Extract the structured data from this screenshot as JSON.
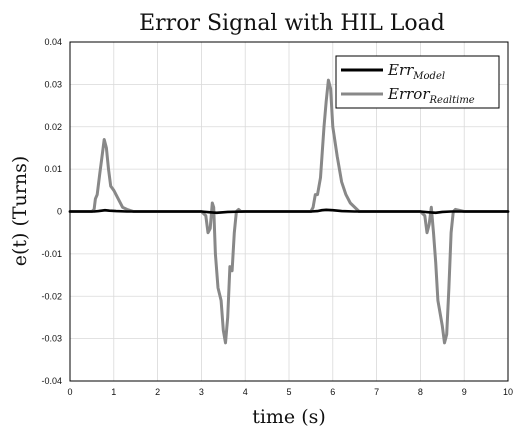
{
  "chart_data": {
    "type": "line",
    "title": "Error Signal with HIL Load",
    "xlabel": "time (s)",
    "ylabel": "e(t) (Turns)",
    "xlim": [
      0,
      10
    ],
    "ylim": [
      -0.04,
      0.04
    ],
    "xticks": [
      0,
      1,
      2,
      3,
      4,
      5,
      6,
      7,
      8,
      9,
      10
    ],
    "yticks": [
      0.04,
      0.03,
      0.02,
      0.01,
      0,
      -0.01,
      -0.02,
      -0.03,
      -0.04
    ],
    "ytick_labels": [
      "0.04",
      "0.03",
      "0.02",
      "0.01",
      "0",
      "-0.01",
      "-0.02",
      "-0.03",
      "-0.04"
    ],
    "xtick_labels": [
      "0",
      "1",
      "2",
      "3",
      "4",
      "5",
      "6",
      "7",
      "8",
      "9",
      "10"
    ],
    "grid": true,
    "legend_position": "top-right",
    "series": [
      {
        "name_main": "Err",
        "name_sub": "Model",
        "color": "#000000",
        "x": [
          0,
          0.55,
          0.65,
          0.72,
          0.8,
          0.9,
          1.05,
          1.3,
          2.0,
          3.0,
          3.2,
          3.35,
          3.6,
          4.0,
          5.5,
          5.65,
          5.75,
          5.85,
          6.0,
          6.2,
          6.5,
          7.5,
          8.0,
          8.2,
          8.35,
          8.5,
          8.7,
          9.0,
          10.0
        ],
        "y": [
          0,
          0,
          0.0001,
          0.0002,
          0.0003,
          0.0002,
          0.0001,
          0,
          0,
          0,
          -0.0002,
          -0.0003,
          -0.0001,
          0,
          0,
          0.0001,
          0.0003,
          0.0004,
          0.0003,
          0.0001,
          0,
          0,
          0,
          -0.0002,
          -0.0003,
          -0.0001,
          0,
          0,
          0
        ]
      },
      {
        "name_main": "Error",
        "name_sub": "Realtime",
        "color": "#888888",
        "x": [
          0,
          0.5,
          0.55,
          0.58,
          0.62,
          0.68,
          0.72,
          0.78,
          0.83,
          0.88,
          0.93,
          1.0,
          1.1,
          1.2,
          1.3,
          1.45,
          2.0,
          3.0,
          3.1,
          3.15,
          3.2,
          3.25,
          3.28,
          3.32,
          3.38,
          3.45,
          3.5,
          3.55,
          3.6,
          3.65,
          3.7,
          3.75,
          3.8,
          3.85,
          3.9,
          4.0,
          4.5,
          5.5,
          5.55,
          5.6,
          5.65,
          5.72,
          5.8,
          5.85,
          5.9,
          5.95,
          6.0,
          6.1,
          6.2,
          6.3,
          6.4,
          6.6,
          7.0,
          8.0,
          8.1,
          8.15,
          8.2,
          8.25,
          8.3,
          8.35,
          8.4,
          8.5,
          8.55,
          8.6,
          8.65,
          8.7,
          8.75,
          8.8,
          9.0,
          10.0
        ],
        "y": [
          0,
          0,
          0.0005,
          0.003,
          0.004,
          0.009,
          0.012,
          0.017,
          0.015,
          0.01,
          0.006,
          0.005,
          0.003,
          0.001,
          0.0005,
          0,
          0,
          0,
          -0.001,
          -0.005,
          -0.004,
          0.002,
          0.001,
          -0.01,
          -0.018,
          -0.021,
          -0.028,
          -0.031,
          -0.025,
          -0.013,
          -0.014,
          -0.005,
          0,
          0.0005,
          0,
          0,
          0,
          0,
          0.001,
          0.004,
          0.004,
          0.008,
          0.02,
          0.026,
          0.031,
          0.029,
          0.02,
          0.013,
          0.007,
          0.004,
          0.002,
          0,
          0,
          0,
          -0.001,
          -0.005,
          -0.003,
          0.001,
          -0.005,
          -0.012,
          -0.021,
          -0.027,
          -0.031,
          -0.029,
          -0.018,
          -0.005,
          0,
          0.0005,
          0,
          0
        ]
      }
    ]
  }
}
